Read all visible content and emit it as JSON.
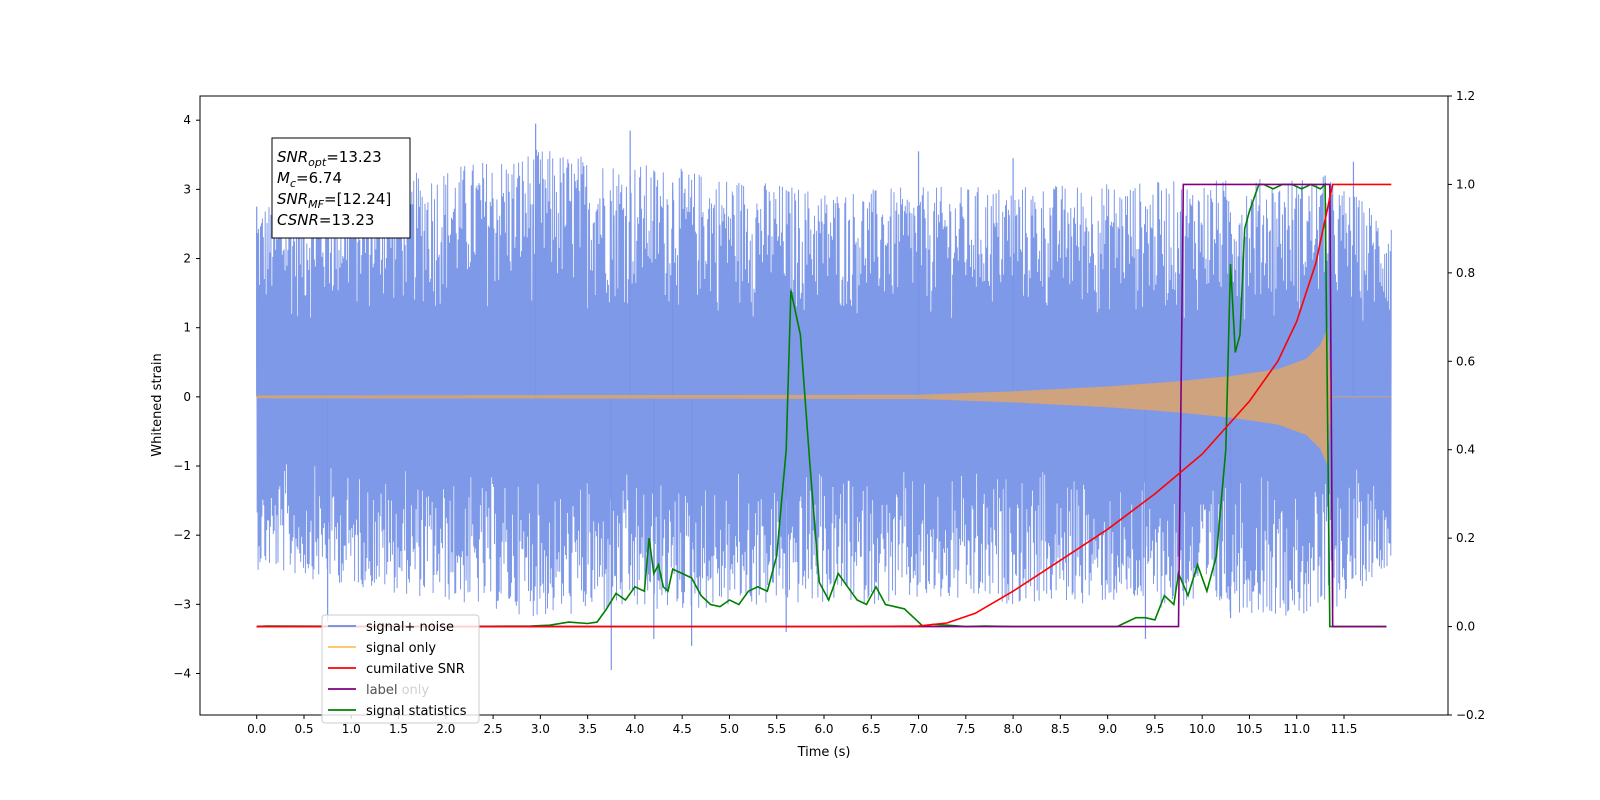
{
  "chart_data": {
    "type": "line",
    "xlabel": "Time (s)",
    "ylabel": "Whitened strain",
    "xlim": [
      -0.6,
      12.6
    ],
    "ylim": [
      -4.6,
      4.35
    ],
    "y2lim": [
      -0.2,
      1.2
    ],
    "x_ticks": [
      "0.0",
      "0.5",
      "1.0",
      "1.5",
      "2.0",
      "2.5",
      "3.0",
      "3.5",
      "4.0",
      "4.5",
      "5.0",
      "5.5",
      "6.0",
      "6.5",
      "7.0",
      "7.5",
      "8.0",
      "8.5",
      "9.0",
      "9.5",
      "10.0",
      "10.5",
      "11.0",
      "11.5"
    ],
    "y_ticks": [
      "4",
      "3",
      "2",
      "1",
      "0",
      "−1",
      "−2",
      "−3",
      "−4"
    ],
    "y2_ticks": [
      "1.2",
      "1.0",
      "0.8",
      "0.6",
      "0.4",
      "0.2",
      "0.0",
      "−0.2"
    ],
    "grid": false,
    "legend_placement": "lower-left",
    "annotation_lines": [
      {
        "base": "SNR",
        "sub": "opt",
        "value": "=13.23"
      },
      {
        "base": "M",
        "sub": "c",
        "value": "=6.74"
      },
      {
        "base": "SNR",
        "sub": "MF",
        "value": "=[12.24]"
      },
      {
        "base": "CSNR",
        "sub": "",
        "value": "=13.23"
      }
    ],
    "legend": [
      {
        "name": "signal+ noise",
        "color": "#6a8ae6"
      },
      {
        "name": "signal only",
        "color": "#ffbf60"
      },
      {
        "name": "cumilative SNR",
        "color": "#ff0000"
      },
      {
        "name": "label",
        "color": "#800080"
      },
      {
        "name": "signal statistics",
        "color": "#008000"
      },
      {
        "name": "label only",
        "color": "#aaaaaa"
      }
    ],
    "series": [
      {
        "name": "signal+ noise",
        "axis": "left",
        "color": "#7893e8",
        "x_range": [
          0.0,
          12.0
        ],
        "envelope": {
          "x": [
            0.0,
            3.0,
            6.0,
            9.0,
            11.3,
            12.0
          ],
          "upper": [
            2.8,
            3.6,
            3.0,
            3.1,
            3.2,
            2.6
          ],
          "lower": [
            -2.5,
            -3.2,
            -3.0,
            -3.0,
            -3.2,
            -2.4
          ]
        },
        "spikes_up": [
          [
            0.0,
            2.75
          ],
          [
            2.95,
            3.95
          ],
          [
            3.95,
            3.85
          ],
          [
            4.4,
            3.1
          ],
          [
            7.0,
            3.55
          ],
          [
            8.0,
            3.45
          ],
          [
            11.3,
            3.2
          ],
          [
            11.6,
            3.4
          ]
        ],
        "spikes_down": [
          [
            0.75,
            -3.25
          ],
          [
            3.75,
            -3.95
          ],
          [
            4.2,
            -3.5
          ],
          [
            4.6,
            -3.6
          ],
          [
            5.6,
            -3.4
          ],
          [
            9.4,
            -3.5
          ],
          [
            10.3,
            -3.2
          ]
        ]
      },
      {
        "name": "signal only",
        "axis": "left",
        "color": "#dca46a",
        "x_range": [
          0.0,
          12.0
        ],
        "envelope": {
          "x": [
            0.0,
            7.0,
            8.0,
            9.0,
            9.7,
            10.3,
            10.8,
            11.1,
            11.25,
            11.33,
            11.36,
            12.0
          ],
          "upper": [
            0.02,
            0.03,
            0.08,
            0.15,
            0.22,
            0.3,
            0.4,
            0.55,
            0.75,
            1.0,
            0.0,
            0.0
          ],
          "lower": [
            -0.02,
            -0.03,
            -0.08,
            -0.15,
            -0.22,
            -0.3,
            -0.4,
            -0.55,
            -0.75,
            -1.0,
            0.0,
            0.0
          ]
        }
      },
      {
        "name": "cumilative SNR",
        "axis": "right",
        "color": "#ff0000",
        "x": [
          0.0,
          6.0,
          7.0,
          7.3,
          7.6,
          8.0,
          8.5,
          9.0,
          9.5,
          10.0,
          10.5,
          10.8,
          11.0,
          11.2,
          11.3,
          11.38,
          12.0
        ],
        "y": [
          0.0,
          0.0,
          0.001,
          0.008,
          0.03,
          0.08,
          0.15,
          0.22,
          0.3,
          0.39,
          0.51,
          0.6,
          0.69,
          0.82,
          0.92,
          1.0,
          1.0
        ]
      },
      {
        "name": "label",
        "axis": "right",
        "color": "#800080",
        "x": [
          0.0,
          9.75,
          9.8,
          11.35,
          11.38,
          11.95
        ],
        "y": [
          0.0,
          0.0,
          1.0,
          1.0,
          0.0,
          0.0
        ]
      },
      {
        "name": "signal statistics",
        "axis": "right",
        "color": "#008000",
        "x": [
          0.0,
          0.1,
          2.0,
          2.9,
          3.1,
          3.3,
          3.5,
          3.6,
          3.7,
          3.8,
          3.9,
          4.0,
          4.1,
          4.15,
          4.2,
          4.25,
          4.3,
          4.35,
          4.4,
          4.5,
          4.6,
          4.7,
          4.8,
          4.9,
          5.0,
          5.1,
          5.2,
          5.3,
          5.4,
          5.5,
          5.6,
          5.65,
          5.75,
          5.85,
          5.95,
          6.05,
          6.15,
          6.25,
          6.35,
          6.45,
          6.55,
          6.65,
          6.75,
          6.85,
          6.95,
          7.05,
          7.15,
          7.3,
          7.5,
          7.7,
          8.0,
          8.4,
          8.8,
          9.1,
          9.2,
          9.3,
          9.4,
          9.5,
          9.6,
          9.7,
          9.75,
          9.85,
          9.95,
          10.05,
          10.15,
          10.25,
          10.3,
          10.35,
          10.4,
          10.45,
          10.5,
          10.55,
          10.6,
          10.65,
          10.75,
          10.85,
          10.95,
          11.05,
          11.15,
          11.25,
          11.3,
          11.35,
          11.4,
          11.45,
          11.95
        ],
        "y": [
          0.0,
          0.001,
          0.0,
          0.001,
          0.003,
          0.01,
          0.007,
          0.01,
          0.04,
          0.075,
          0.06,
          0.09,
          0.08,
          0.2,
          0.12,
          0.14,
          0.09,
          0.08,
          0.13,
          0.12,
          0.11,
          0.07,
          0.05,
          0.045,
          0.06,
          0.05,
          0.08,
          0.09,
          0.08,
          0.16,
          0.4,
          0.76,
          0.66,
          0.37,
          0.1,
          0.06,
          0.12,
          0.09,
          0.06,
          0.05,
          0.09,
          0.05,
          0.045,
          0.04,
          0.02,
          0.0,
          0.005,
          0.003,
          0.0,
          0.001,
          0.0,
          0.0,
          0.0,
          0.0,
          0.01,
          0.02,
          0.02,
          0.015,
          0.07,
          0.05,
          0.12,
          0.07,
          0.14,
          0.08,
          0.16,
          0.4,
          0.82,
          0.62,
          0.66,
          0.9,
          0.94,
          0.97,
          1.0,
          1.0,
          0.99,
          1.0,
          1.0,
          0.99,
          1.0,
          0.99,
          1.0,
          0.0,
          0.0,
          0.0,
          0.0
        ]
      }
    ]
  }
}
